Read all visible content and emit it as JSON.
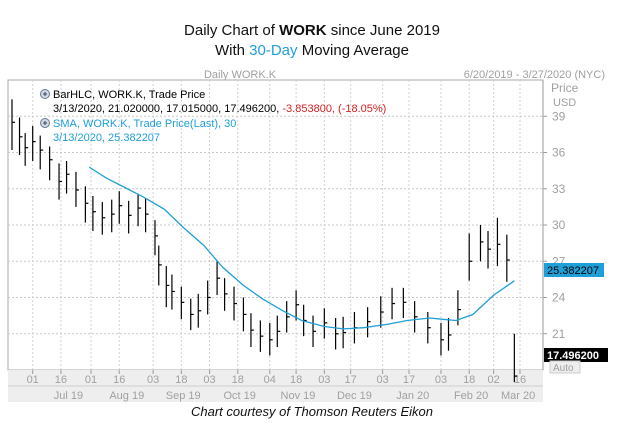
{
  "title": {
    "line1_prefix": "Daily Chart of ",
    "line1_ticker": "WORK",
    "line1_suffix": " since June 2019",
    "line2_prefix": "With ",
    "line2_accent": "30-Day",
    "line2_suffix": " Moving Average"
  },
  "header": {
    "center": "Daily WORK.K",
    "range": "6/20/2019 - 3/27/2020 (NYC)"
  },
  "legend": {
    "bar_title": "BarHLC, WORK.K, Trade Price",
    "bar_values_prefix": "3/13/2020, 21.020000, 17.015000, 17.496200, ",
    "bar_change": "-3.853800, (-18.05%)",
    "sma_title": "SMA, WORK.K, Trade Price(Last),  30",
    "sma_values": "3/13/2020, 25.382207"
  },
  "axis": {
    "price_label": "Price",
    "currency_label": "USD",
    "auto_label": "Auto",
    "last_sma_label": "25.382207",
    "last_price_label": "17.496200"
  },
  "footer": "Chart courtesy of Thomson Reuters Eikon",
  "colors": {
    "price_bars": "#000000",
    "sma_line": "#1f9fd8",
    "change_text": "#d42020",
    "sma_tag": "#1f9fd8"
  },
  "chart_data": {
    "type": "line",
    "title": "Daily Chart of WORK since June 2019",
    "subtitle": "With 30-Day Moving Average",
    "ylim": [
      18,
      42
    ],
    "yticks": [
      21,
      24,
      27,
      30,
      33,
      36,
      39
    ],
    "grid": true,
    "xticks": [
      {
        "date": "2019-07-01",
        "label": "01"
      },
      {
        "date": "2019-07-16",
        "label": "16"
      },
      {
        "date": "2019-08-01",
        "label": "01"
      },
      {
        "date": "2019-08-16",
        "label": "16"
      },
      {
        "date": "2019-09-03",
        "label": "03"
      },
      {
        "date": "2019-09-18",
        "label": "18"
      },
      {
        "date": "2019-10-03",
        "label": "03"
      },
      {
        "date": "2019-10-18",
        "label": "18"
      },
      {
        "date": "2019-11-04",
        "label": "04"
      },
      {
        "date": "2019-11-18",
        "label": "18"
      },
      {
        "date": "2019-12-03",
        "label": "03"
      },
      {
        "date": "2019-12-17",
        "label": "17"
      },
      {
        "date": "2020-01-03",
        "label": "03"
      },
      {
        "date": "2020-01-17",
        "label": "17"
      },
      {
        "date": "2020-02-03",
        "label": "03"
      },
      {
        "date": "2020-02-18",
        "label": "18"
      },
      {
        "date": "2020-03-02",
        "label": "02"
      },
      {
        "date": "2020-03-16",
        "label": "16"
      }
    ],
    "month_labels": [
      {
        "date": "2019-07-20",
        "label": "Jul 19"
      },
      {
        "date": "2019-08-20",
        "label": "Aug 19"
      },
      {
        "date": "2019-09-19",
        "label": "Sep 19"
      },
      {
        "date": "2019-10-19",
        "label": "Oct 19"
      },
      {
        "date": "2019-11-19",
        "label": "Nov 19"
      },
      {
        "date": "2019-12-19",
        "label": "Dec 19"
      },
      {
        "date": "2020-01-19",
        "label": "Jan 20"
      },
      {
        "date": "2020-02-19",
        "label": "Feb 20"
      },
      {
        "date": "2020-03-15",
        "label": "Mar 20"
      }
    ],
    "series": [
      {
        "kind": "close",
        "x": [
          "2019-06-20",
          "2019-06-24",
          "2019-06-27",
          "2019-07-01",
          "2019-07-05",
          "2019-07-10",
          "2019-07-15",
          "2019-07-19",
          "2019-07-24",
          "2019-07-29",
          "2019-08-02",
          "2019-08-07",
          "2019-08-12",
          "2019-08-16",
          "2019-08-21",
          "2019-08-26",
          "2019-08-30",
          "2019-09-04",
          "2019-09-06",
          "2019-09-10",
          "2019-09-13",
          "2019-09-18",
          "2019-09-23",
          "2019-09-27",
          "2019-10-02",
          "2019-10-07",
          "2019-10-11",
          "2019-10-16",
          "2019-10-21",
          "2019-10-25",
          "2019-10-30",
          "2019-11-04",
          "2019-11-08",
          "2019-11-13",
          "2019-11-18",
          "2019-11-22",
          "2019-11-27",
          "2019-12-03",
          "2019-12-09",
          "2019-12-13",
          "2019-12-19",
          "2019-12-26",
          "2020-01-02",
          "2020-01-08",
          "2020-01-14",
          "2020-01-20",
          "2020-01-27",
          "2020-02-03",
          "2020-02-07",
          "2020-02-12",
          "2020-02-18",
          "2020-02-24",
          "2020-02-28",
          "2020-03-04",
          "2020-03-09",
          "2020-03-13"
        ],
        "y": [
          38.5,
          37.3,
          36.4,
          36.9,
          36.2,
          35.4,
          33.6,
          34.2,
          32.9,
          31.8,
          31.1,
          30.6,
          30.9,
          31.6,
          30.8,
          31.4,
          30.9,
          29.1,
          26.7,
          25.0,
          24.5,
          23.6,
          22.6,
          22.9,
          24.0,
          25.6,
          24.3,
          23.5,
          22.6,
          21.3,
          20.8,
          20.5,
          21.2,
          22.4,
          23.4,
          22.1,
          21.2,
          21.9,
          21.0,
          21.1,
          21.5,
          22.0,
          22.8,
          23.5,
          23.6,
          22.4,
          21.5,
          20.5,
          20.9,
          23.0,
          27.0,
          28.6,
          28.0,
          28.4,
          27.1,
          17.5
        ],
        "high": [
          40.4,
          38.9,
          37.6,
          38.2,
          37.4,
          36.5,
          35.1,
          35.3,
          34.4,
          33.2,
          32.4,
          31.9,
          32.1,
          32.8,
          32.0,
          32.6,
          32.2,
          30.4,
          28.3,
          26.6,
          25.9,
          24.9,
          23.9,
          24.3,
          25.4,
          27.0,
          25.6,
          24.9,
          24.0,
          22.7,
          22.1,
          21.9,
          22.5,
          23.7,
          24.6,
          23.4,
          22.5,
          23.1,
          22.3,
          22.4,
          22.8,
          23.2,
          24.1,
          24.8,
          24.8,
          23.7,
          22.8,
          21.9,
          22.3,
          24.6,
          29.3,
          30.0,
          29.5,
          30.6,
          29.2,
          21.0
        ],
        "low": [
          36.2,
          35.8,
          34.9,
          35.3,
          34.6,
          33.7,
          32.1,
          32.6,
          31.5,
          30.2,
          29.5,
          29.2,
          29.4,
          30.1,
          29.3,
          29.9,
          29.4,
          27.5,
          25.0,
          23.2,
          23.0,
          22.2,
          21.3,
          21.5,
          22.6,
          24.2,
          22.9,
          22.1,
          21.2,
          19.9,
          19.5,
          19.2,
          19.9,
          21.1,
          22.1,
          20.8,
          19.9,
          20.6,
          19.7,
          19.8,
          20.2,
          20.7,
          21.5,
          22.2,
          22.3,
          21.1,
          20.2,
          19.2,
          19.6,
          21.7,
          25.4,
          27.0,
          26.4,
          26.6,
          25.3,
          17.0
        ]
      },
      {
        "kind": "sma",
        "x": [
          "2019-07-31",
          "2019-08-09",
          "2019-08-19",
          "2019-08-29",
          "2019-09-09",
          "2019-09-19",
          "2019-09-30",
          "2019-10-10",
          "2019-10-21",
          "2019-10-31",
          "2019-11-11",
          "2019-11-21",
          "2019-12-03",
          "2019-12-13",
          "2019-12-24",
          "2020-01-06",
          "2020-01-16",
          "2020-01-28",
          "2020-02-04",
          "2020-02-11",
          "2020-02-20",
          "2020-03-02",
          "2020-03-13"
        ],
        "y": [
          34.8,
          33.9,
          33.1,
          32.3,
          31.3,
          29.8,
          28.3,
          26.5,
          25.0,
          23.9,
          22.9,
          22.1,
          21.6,
          21.4,
          21.5,
          21.8,
          22.1,
          22.3,
          22.2,
          22.1,
          22.6,
          24.2,
          25.382207
        ]
      }
    ]
  }
}
